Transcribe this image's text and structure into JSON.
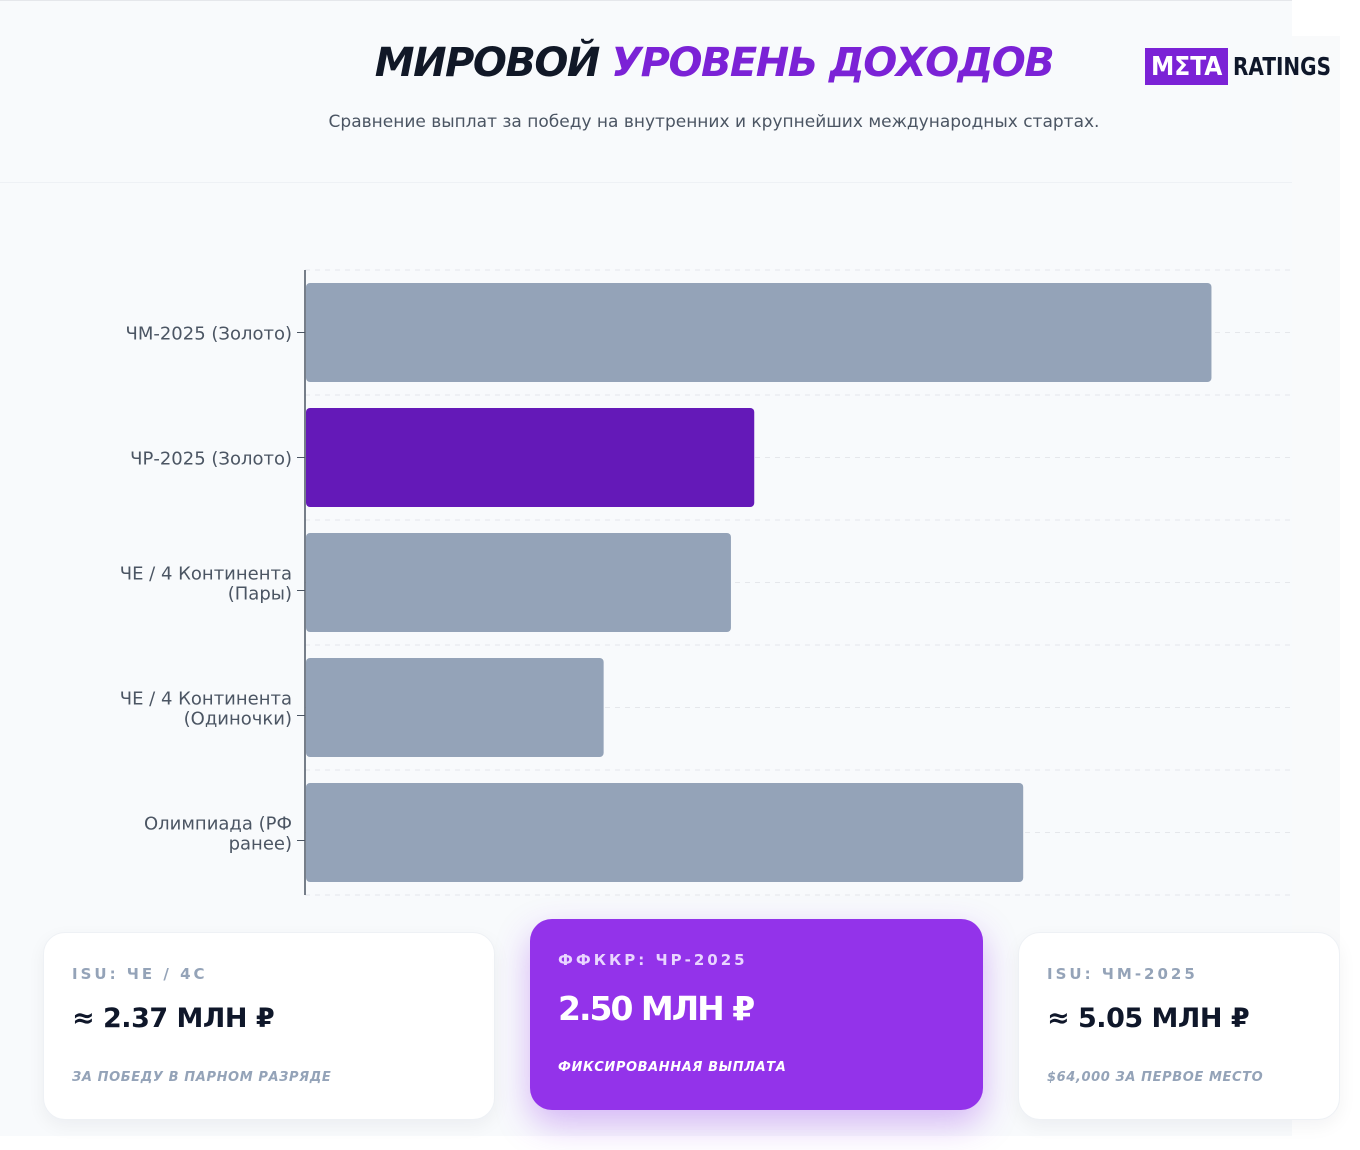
{
  "header": {
    "title_part1": "МИРОВОЙ",
    "title_part2": "УРОВЕНЬ ДОХОДОВ",
    "subtitle": "Сравнение выплат за победу на внутренних и крупнейших международных стартах."
  },
  "logo": {
    "box_text": "MΣTA",
    "text": "RATINGS"
  },
  "colors": {
    "accent": "#7b22d6",
    "highlight_bar": "#6419b8",
    "default_bar": "#94a3b8",
    "card_highlight": "#9333ea"
  },
  "chart_data": {
    "type": "bar",
    "orientation": "horizontal",
    "categories": [
      "ЧМ-2025 (Золото)",
      "ЧР-2025 (Золото)",
      "ЧЕ / 4 Континента (Пары)",
      "ЧЕ / 4 Континента (Одиночки)",
      "Олимпиада (РФ ранее)"
    ],
    "category_lines": [
      [
        "ЧМ-2025 (Золото)"
      ],
      [
        "ЧР-2025 (Золото)"
      ],
      [
        "ЧЕ / 4 Континента",
        "(Пары)"
      ],
      [
        "ЧЕ / 4 Континента",
        "(Одиночки)"
      ],
      [
        "Олимпиада (РФ",
        "ранее)"
      ]
    ],
    "values": [
      5.05,
      2.5,
      2.37,
      1.66,
      4.0
    ],
    "highlight_index": 1,
    "xlim": [
      0,
      5.5
    ],
    "grid": true,
    "xaxis_visible": false
  },
  "cards": [
    {
      "label": "ISU: ЧЕ / 4С",
      "value": "≈ 2.37 МЛН ₽",
      "note": "ЗА ПОБЕДУ В ПАРНОМ РАЗРЯДЕ"
    },
    {
      "label": "ФФККР: ЧР-2025",
      "value": "2.50 МЛН ₽",
      "note": "ФИКСИРОВАННАЯ ВЫПЛАТА"
    },
    {
      "label": "ISU: ЧМ-2025",
      "value": "≈ 5.05 МЛН ₽",
      "note": "$64,000 ЗА ПЕРВОЕ МЕСТО"
    }
  ]
}
